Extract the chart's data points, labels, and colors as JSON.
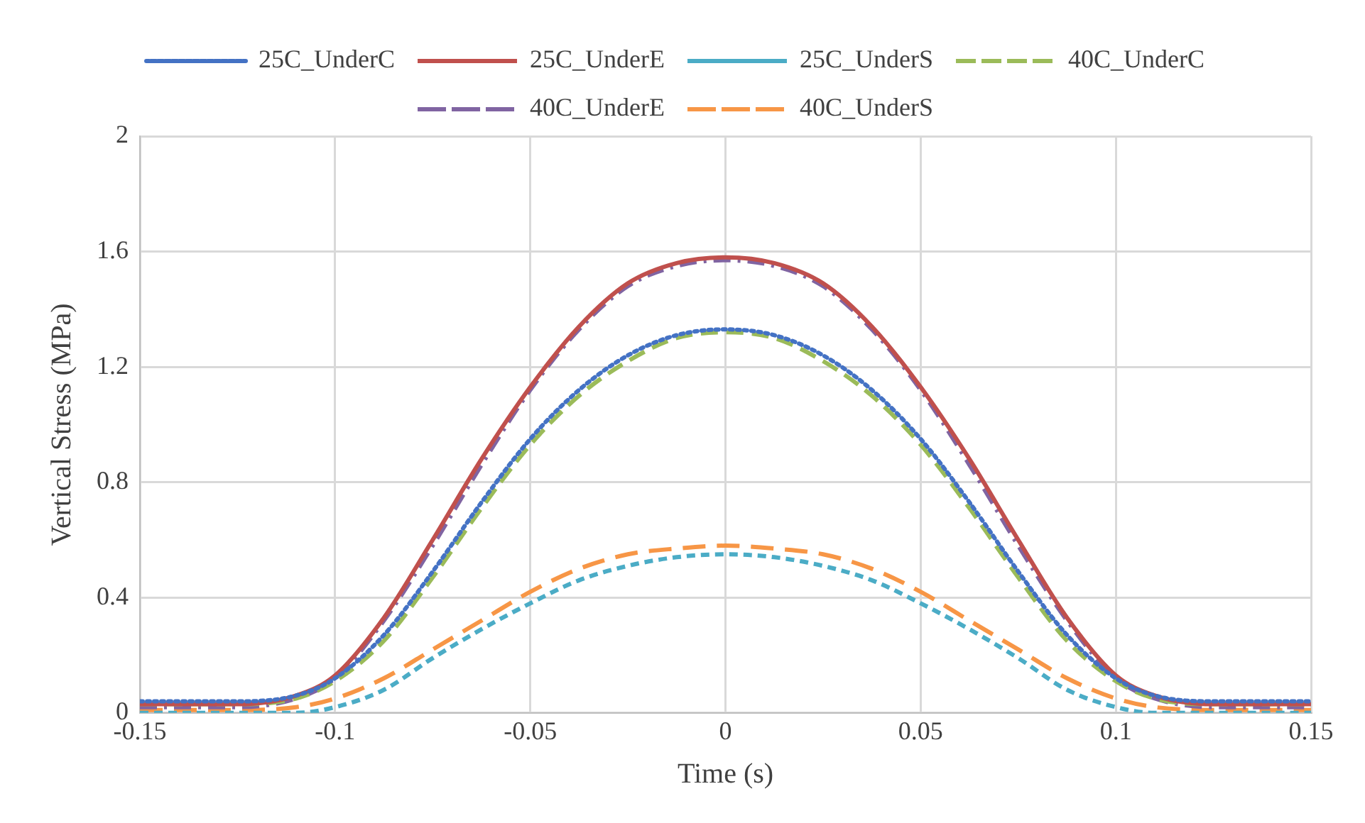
{
  "chart_data": {
    "type": "line",
    "xlabel": "Time (s)",
    "ylabel": "Vertical Stress (MPa)",
    "x": [
      -0.15,
      -0.125,
      -0.11,
      -0.1,
      -0.0875,
      -0.075,
      -0.0625,
      -0.05,
      -0.0375,
      -0.025,
      -0.0125,
      0,
      0.0125,
      0.025,
      0.0375,
      0.05,
      0.0625,
      0.075,
      0.0875,
      0.1,
      0.11,
      0.125,
      0.15
    ],
    "series": [
      {
        "name": "25C_UnderC",
        "color": "#4472c4",
        "line_style": "dotted",
        "values": [
          0.04,
          0.04,
          0.06,
          0.12,
          0.27,
          0.49,
          0.73,
          0.95,
          1.12,
          1.24,
          1.31,
          1.33,
          1.31,
          1.24,
          1.12,
          0.95,
          0.73,
          0.49,
          0.27,
          0.12,
          0.06,
          0.04,
          0.04
        ]
      },
      {
        "name": "25C_UnderE",
        "color": "#c0504d",
        "line_style": "solid",
        "values": [
          0.03,
          0.03,
          0.06,
          0.13,
          0.33,
          0.6,
          0.88,
          1.13,
          1.34,
          1.49,
          1.56,
          1.58,
          1.56,
          1.49,
          1.34,
          1.13,
          0.88,
          0.6,
          0.33,
          0.13,
          0.06,
          0.03,
          0.03
        ]
      },
      {
        "name": "25C_UnderS",
        "color": "#4bacc6",
        "line_style": "dashed",
        "values": [
          0,
          0,
          0,
          0.02,
          0.08,
          0.19,
          0.29,
          0.38,
          0.46,
          0.51,
          0.54,
          0.55,
          0.54,
          0.51,
          0.46,
          0.38,
          0.29,
          0.19,
          0.08,
          0.02,
          0,
          0,
          0
        ]
      },
      {
        "name": "40C_UnderC",
        "color": "#9bbb59",
        "line_style": "dashed",
        "values": [
          0.03,
          0.03,
          0.05,
          0.11,
          0.25,
          0.47,
          0.71,
          0.93,
          1.1,
          1.22,
          1.3,
          1.32,
          1.3,
          1.22,
          1.1,
          0.93,
          0.71,
          0.47,
          0.25,
          0.11,
          0.05,
          0.03,
          0.03
        ]
      },
      {
        "name": "40C_UnderE",
        "color": "#8064a2",
        "line_style": "dashed",
        "values": [
          0.02,
          0.02,
          0.05,
          0.12,
          0.32,
          0.58,
          0.86,
          1.12,
          1.33,
          1.48,
          1.55,
          1.57,
          1.55,
          1.48,
          1.33,
          1.12,
          0.86,
          0.58,
          0.32,
          0.12,
          0.05,
          0.02,
          0.02
        ]
      },
      {
        "name": "40C_UnderS",
        "color": "#f79646",
        "line_style": "dashed",
        "values": [
          0.01,
          0.01,
          0.02,
          0.05,
          0.12,
          0.22,
          0.32,
          0.42,
          0.5,
          0.55,
          0.57,
          0.58,
          0.57,
          0.55,
          0.5,
          0.42,
          0.32,
          0.22,
          0.12,
          0.05,
          0.02,
          0.01,
          0.01
        ]
      }
    ],
    "xlim": [
      -0.15,
      0.15
    ],
    "xticks": [
      -0.15,
      -0.1,
      -0.05,
      0,
      0.05,
      0.1,
      0.15
    ],
    "ylim": [
      0,
      2
    ],
    "yticks": [
      0,
      0.4,
      0.8,
      1.2,
      1.6,
      2
    ],
    "grid": true,
    "legend": "top",
    "marker": "none"
  }
}
